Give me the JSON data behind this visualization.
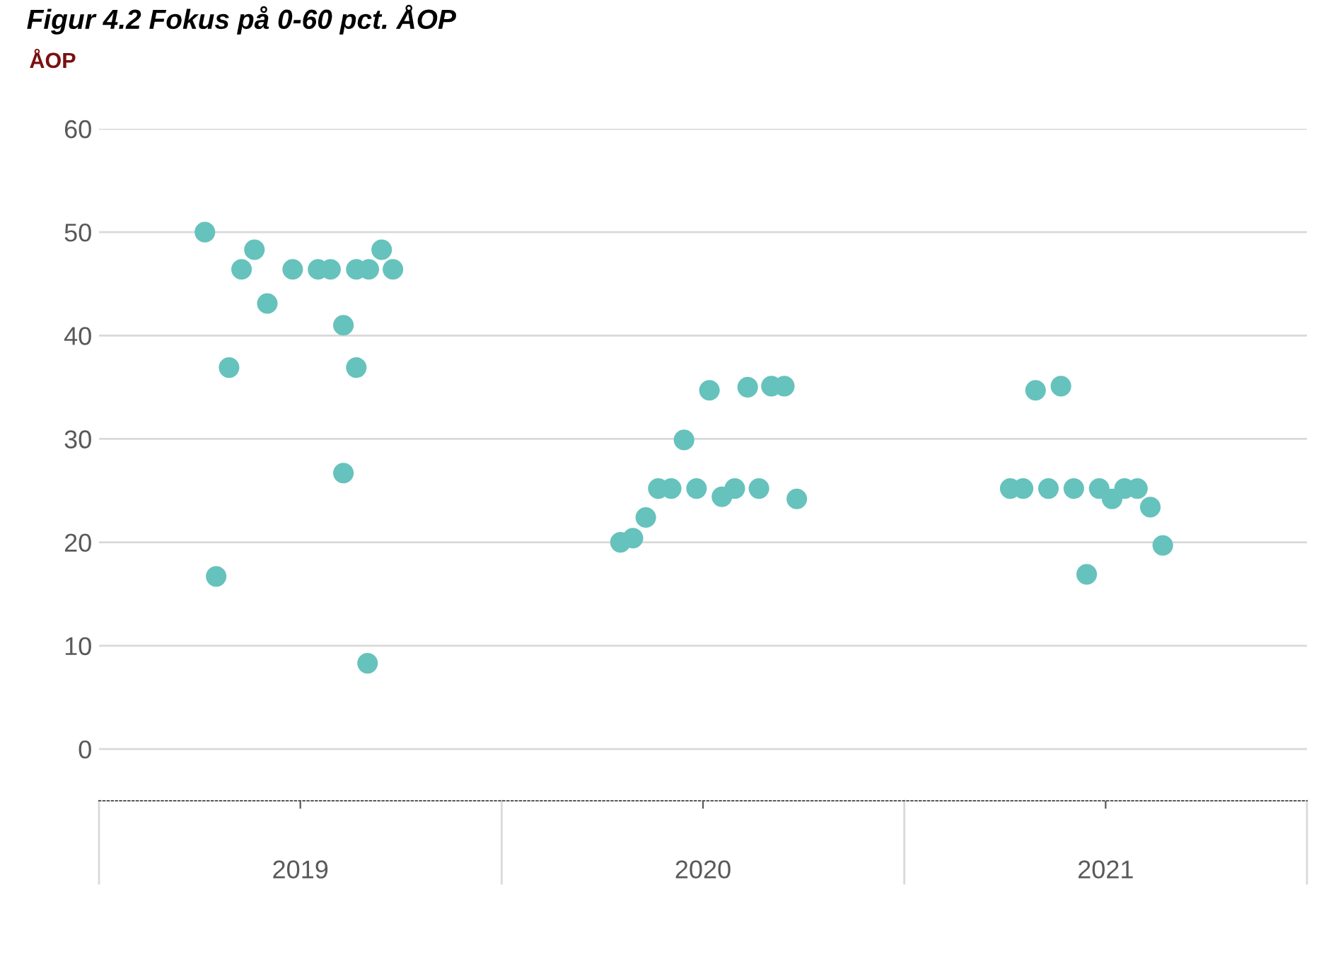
{
  "chart_data": {
    "type": "scatter",
    "title": "Figur 4.2 Fokus på 0-60 pct. ÅOP",
    "ylabel": "ÅOP",
    "xlim": [
      2018.5,
      2021.5
    ],
    "xticks": [
      2019,
      2020,
      2021
    ],
    "ylim": [
      -5,
      60
    ],
    "yticks": [
      0,
      10,
      20,
      30,
      40,
      50,
      60
    ],
    "grid": "y",
    "marker": "circle",
    "series": [
      {
        "color": "#66c2bc",
        "x": [
          2018.763,
          2018.791,
          2018.823,
          2018.854,
          2018.886,
          2018.918,
          2018.981,
          2019.044,
          2019.075,
          2019.107,
          2019.107,
          2019.139,
          2019.139,
          2019.167,
          2019.17,
          2019.202,
          2019.23,
          2019.795,
          2019.826,
          2019.858,
          2019.889,
          2019.921,
          2019.953,
          2019.984,
          2020.016,
          2020.047,
          2020.079,
          2020.111,
          2020.139,
          2020.17,
          2020.202,
          2020.233,
          2020.763,
          2020.795,
          2020.826,
          2020.858,
          2020.889,
          2020.921,
          2020.953,
          2020.984,
          2021.016,
          2021.047,
          2021.079,
          2021.111,
          2021.142
        ],
        "values": [
          50,
          16.7,
          36.9,
          46.4,
          48.3,
          43.1,
          46.4,
          46.4,
          46.4,
          41.0,
          26.7,
          36.9,
          46.4,
          8.3,
          46.4,
          48.3,
          46.4,
          20.0,
          20.4,
          22.4,
          25.2,
          25.2,
          29.9,
          25.2,
          34.7,
          24.4,
          25.2,
          35.0,
          25.2,
          35.1,
          35.1,
          24.2,
          25.2,
          25.2,
          34.7,
          25.2,
          35.1,
          25.2,
          16.9,
          25.2,
          24.2,
          25.2,
          25.2,
          23.4,
          19.7
        ]
      }
    ]
  }
}
